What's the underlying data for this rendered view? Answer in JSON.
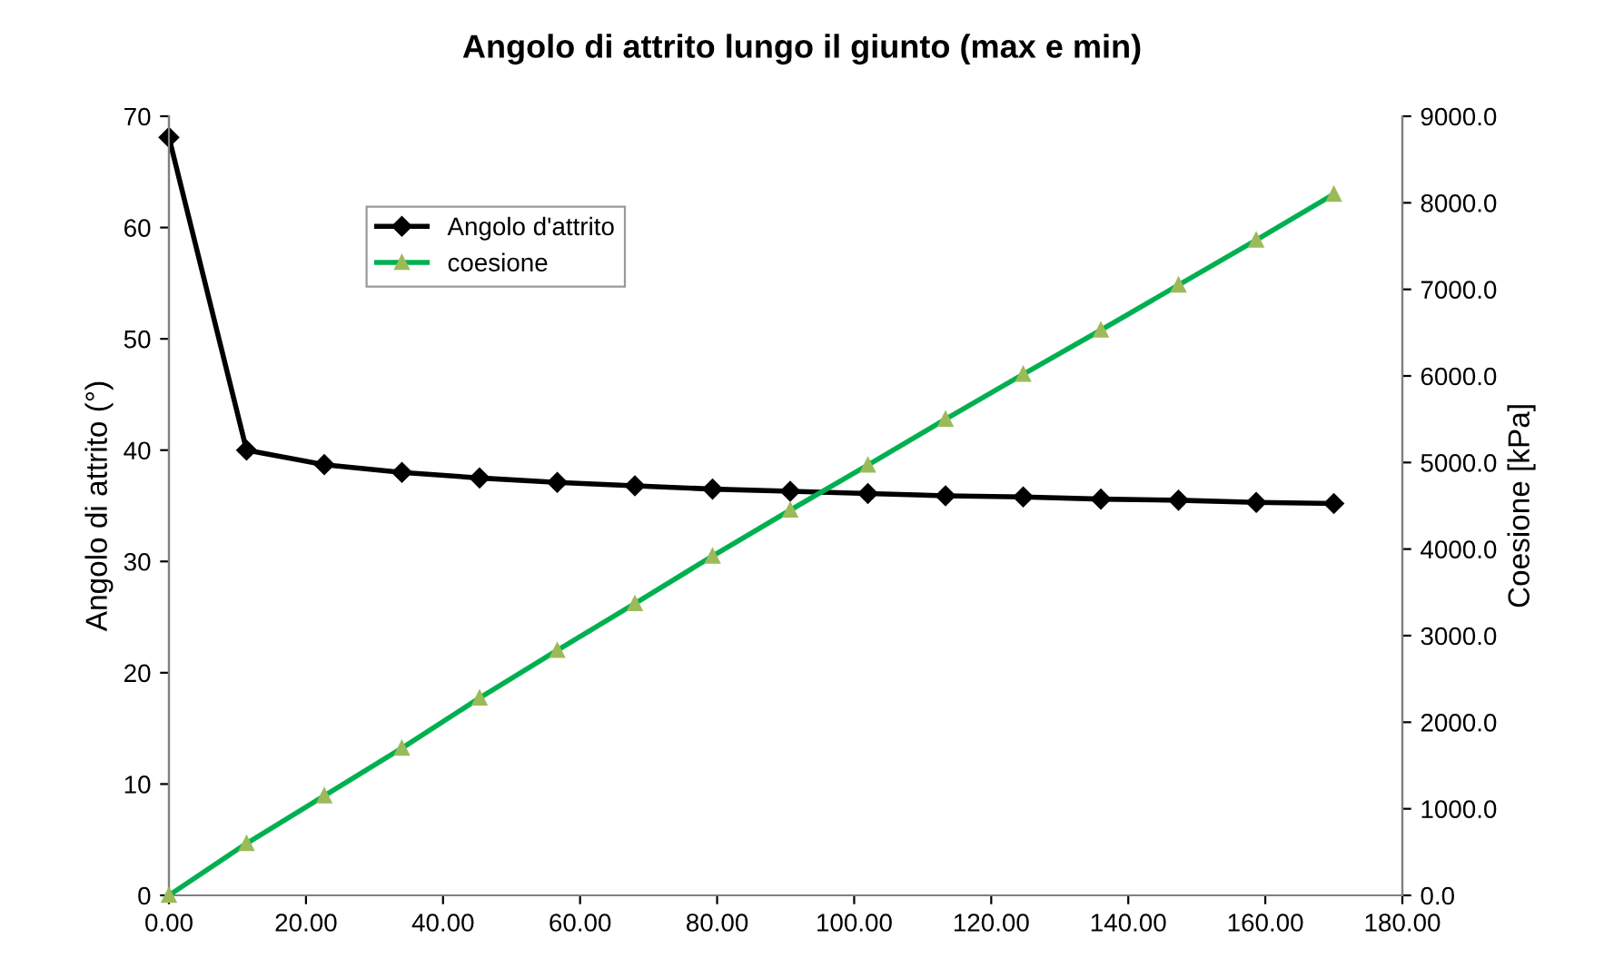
{
  "chart_data": {
    "type": "line",
    "title": "Angolo di attrito lungo il giunto (max e min)",
    "ylabel": "Angolo di attrito (°)",
    "y2label": "Coesione [kPa]",
    "x": [
      0,
      11.33,
      22.67,
      34,
      45.33,
      56.67,
      68,
      79.33,
      90.67,
      102,
      113.33,
      124.67,
      136,
      147.33,
      158.67,
      170
    ],
    "series": [
      {
        "name": "Angolo d'attrito",
        "color": "#000000",
        "marker": "diamond",
        "values": [
          68.1,
          40.0,
          38.7,
          38.0,
          37.5,
          37.1,
          36.8,
          36.5,
          36.3,
          36.1,
          35.9,
          35.8,
          35.6,
          35.5,
          35.3,
          35.2
        ]
      },
      {
        "name": "coesione",
        "color": "#00b050",
        "marker": "triangle",
        "axis": "y2",
        "values": [
          0,
          600,
          1150,
          1700,
          2280,
          2830,
          3370,
          3920,
          4450,
          4970,
          5500,
          6020,
          6530,
          7050,
          7570,
          8100
        ]
      }
    ],
    "xlim": [
      0,
      180
    ],
    "xticks": [
      {
        "value": 0,
        "label": "0.00"
      },
      {
        "value": 20,
        "label": "20.00"
      },
      {
        "value": 40,
        "label": "40.00"
      },
      {
        "value": 60,
        "label": "60.00"
      },
      {
        "value": 80,
        "label": "80.00"
      },
      {
        "value": 100,
        "label": "100.00"
      },
      {
        "value": 120,
        "label": "120.00"
      },
      {
        "value": 140,
        "label": "140.00"
      },
      {
        "value": 160,
        "label": "160.00"
      },
      {
        "value": 180,
        "label": "180.00"
      }
    ],
    "ylim": [
      0,
      70
    ],
    "yticks": [
      0,
      10,
      20,
      30,
      40,
      50,
      60,
      70
    ],
    "y2lim": [
      0,
      9000
    ],
    "y2ticks": [
      {
        "value": 0,
        "label": "0.0"
      },
      {
        "value": 1000,
        "label": "1000.0"
      },
      {
        "value": 2000,
        "label": "2000.0"
      },
      {
        "value": 3000,
        "label": "3000.0"
      },
      {
        "value": 4000,
        "label": "4000.0"
      },
      {
        "value": 5000,
        "label": "5000.0"
      },
      {
        "value": 6000,
        "label": "6000.0"
      },
      {
        "value": 7000,
        "label": "7000.0"
      },
      {
        "value": 8000,
        "label": "8000.0"
      },
      {
        "value": 9000,
        "label": "9000.0"
      }
    ],
    "grid": false,
    "legend": "top left",
    "line_style": "solid"
  }
}
